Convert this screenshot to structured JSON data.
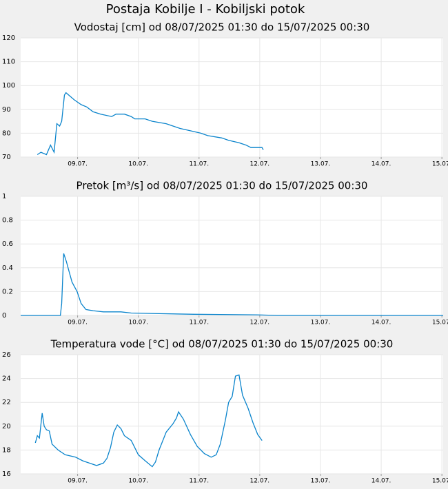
{
  "title": "Postaja Kobilje I - Kobiljski potok",
  "chart_data": [
    {
      "type": "line",
      "title": "Vodostaj [cm] od 08/07/2025 01:30 do 15/07/2025 00:30",
      "color": "#0a84cc",
      "grid": true,
      "xlim": [
        1.5,
        168.5
      ],
      "ylim": [
        70,
        120
      ],
      "yticks": [
        70,
        80,
        90,
        100,
        110,
        120
      ],
      "xticks": [
        {
          "value": 24,
          "label": "09.07."
        },
        {
          "value": 48,
          "label": "10.07."
        },
        {
          "value": 72,
          "label": "11.07."
        },
        {
          "value": 96,
          "label": "12.07."
        },
        {
          "value": 120,
          "label": "13.07."
        },
        {
          "value": 144,
          "label": "14.07."
        },
        {
          "value": 168,
          "label": "15.07."
        }
      ],
      "x": [
        8.1,
        9.5,
        11.7,
        13.3,
        14.7,
        15.8,
        16.9,
        17.7,
        18.8,
        19.4,
        20.5,
        22.7,
        25.4,
        27.6,
        30.1,
        33.1,
        37.5,
        39.2,
        42.5,
        45.2,
        46.6,
        50.7,
        53.5,
        59.0,
        61.7,
        64.5,
        68.6,
        72.7,
        75.4,
        81.0,
        83.7,
        87.8,
        90.6,
        92.5,
        96.9,
        97.4
      ],
      "values": [
        71,
        72,
        71,
        75,
        72,
        84,
        83,
        85,
        96,
        97,
        96,
        94,
        92,
        91,
        89,
        88,
        87,
        88,
        88,
        87,
        86,
        86,
        85,
        84,
        83,
        82,
        81,
        80,
        79,
        78,
        77,
        76,
        75,
        74,
        74,
        73
      ]
    },
    {
      "type": "line",
      "title": "Pretok [m³/s] od 08/07/2025 01:30 do 15/07/2025 00:30",
      "color": "#0a84cc",
      "grid": true,
      "xlim": [
        1.5,
        168.5
      ],
      "ylim": [
        0,
        1
      ],
      "yticks": [
        0,
        0.2,
        0.4,
        0.6,
        0.8,
        1
      ],
      "xticks": [
        {
          "value": 24,
          "label": "09.07."
        },
        {
          "value": 48,
          "label": "10.07."
        },
        {
          "value": 72,
          "label": "11.07."
        },
        {
          "value": 96,
          "label": "12.07."
        },
        {
          "value": 120,
          "label": "13.07."
        },
        {
          "value": 144,
          "label": "14.07."
        },
        {
          "value": 168,
          "label": "15.07."
        }
      ],
      "x": [
        1.5,
        17.2,
        17.7,
        18.5,
        19.6,
        20.5,
        21.8,
        23.8,
        25.4,
        27.3,
        30.1,
        34.2,
        41.1,
        45.2,
        56.2,
        69.9,
        94.7,
        102.9,
        168.5
      ],
      "values": [
        0,
        0,
        0.1,
        0.52,
        0.45,
        0.38,
        0.28,
        0.2,
        0.1,
        0.05,
        0.04,
        0.03,
        0.03,
        0.02,
        0.015,
        0.01,
        0.005,
        0,
        0
      ]
    },
    {
      "type": "line",
      "title": "Temperatura vode [°C] od 08/07/2025 01:30 do 15/07/2025 00:30",
      "color": "#0a84cc",
      "grid": true,
      "xlim": [
        1.5,
        168.5
      ],
      "ylim": [
        16,
        26
      ],
      "yticks": [
        16,
        18,
        20,
        22,
        24,
        26
      ],
      "xticks": [
        {
          "value": 24,
          "label": "09.07."
        },
        {
          "value": 48,
          "label": "10.07."
        },
        {
          "value": 72,
          "label": "11.07."
        },
        {
          "value": 96,
          "label": "12.07."
        },
        {
          "value": 120,
          "label": "13.07."
        },
        {
          "value": 144,
          "label": "14.07."
        },
        {
          "value": 168,
          "label": "15.07."
        }
      ],
      "x": [
        7.3,
        8.1,
        8.9,
        10.0,
        10.8,
        11.7,
        12.8,
        13.9,
        16.3,
        19.1,
        23.2,
        26.0,
        31.5,
        34.2,
        35.6,
        37.0,
        38.3,
        39.7,
        41.1,
        42.5,
        45.2,
        48.0,
        50.7,
        53.5,
        54.8,
        56.2,
        59.0,
        61.7,
        63.1,
        63.9,
        65.8,
        68.6,
        71.3,
        74.1,
        76.8,
        78.8,
        80.4,
        82.4,
        83.7,
        85.1,
        86.4,
        87.8,
        89.2,
        91.4,
        93.3,
        95.2,
        96.9
      ],
      "values": [
        18.6,
        19.2,
        19,
        21.1,
        20,
        19.7,
        19.6,
        18.5,
        18,
        17.6,
        17.4,
        17.1,
        16.7,
        16.9,
        17.3,
        18.2,
        19.5,
        20.1,
        19.8,
        19.2,
        18.8,
        17.6,
        17.1,
        16.6,
        17,
        18,
        19.5,
        20.2,
        20.7,
        21.2,
        20.6,
        19.3,
        18.3,
        17.7,
        17.4,
        17.6,
        18.5,
        20.5,
        22,
        22.5,
        24.2,
        24.3,
        22.6,
        21.5,
        20.3,
        19.3,
        18.8
      ]
    }
  ]
}
